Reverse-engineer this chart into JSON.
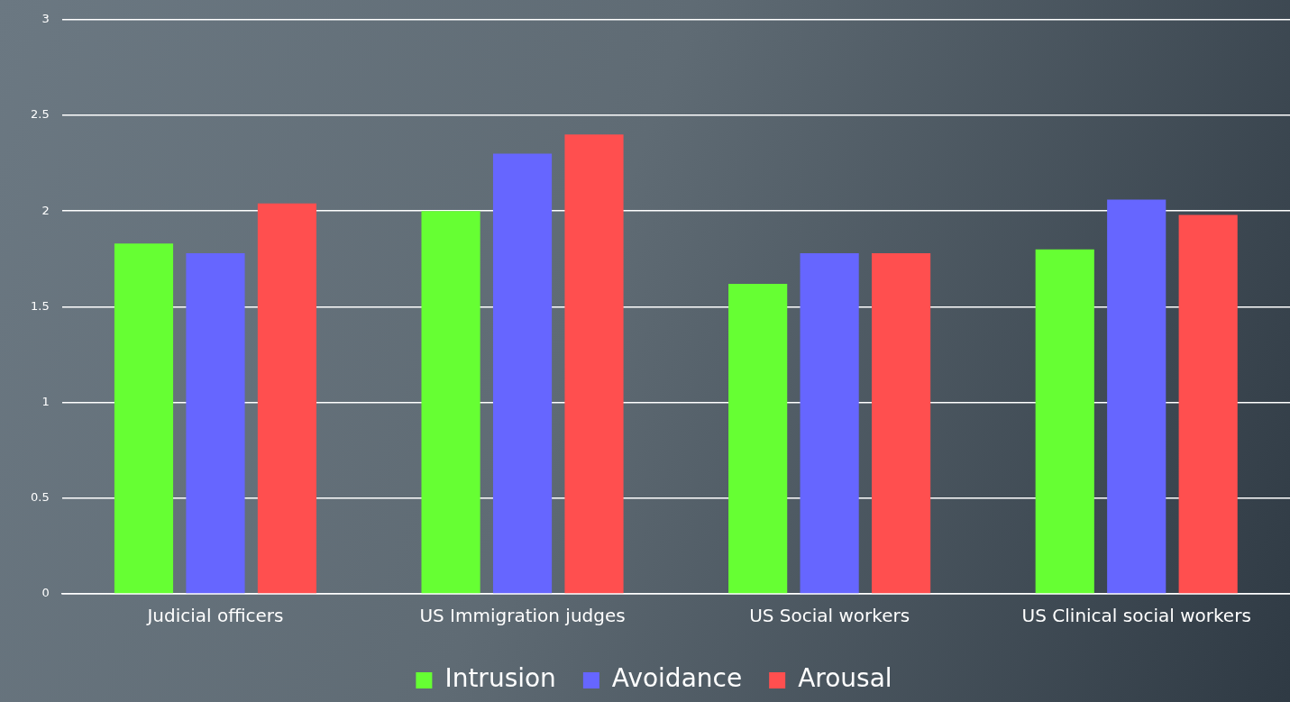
{
  "chart_data": {
    "type": "bar",
    "categories": [
      "Judicial officers",
      "US Immigration judges",
      "US Social workers",
      "US Clinical social workers"
    ],
    "series": [
      {
        "name": "Intrusion",
        "color": "#66ff33",
        "values": [
          1.83,
          2.0,
          1.62,
          1.8
        ]
      },
      {
        "name": "Avoidance",
        "color": "#6666ff",
        "values": [
          1.78,
          2.3,
          1.78,
          2.06
        ]
      },
      {
        "name": "Arousal",
        "color": "#ff4f4f",
        "values": [
          2.04,
          2.4,
          1.78,
          1.98
        ]
      }
    ],
    "ylim": [
      0,
      3
    ],
    "yticks": [
      0,
      0.5,
      1,
      1.5,
      2,
      2.5,
      3
    ],
    "grid": "y",
    "legend": "bottom"
  }
}
